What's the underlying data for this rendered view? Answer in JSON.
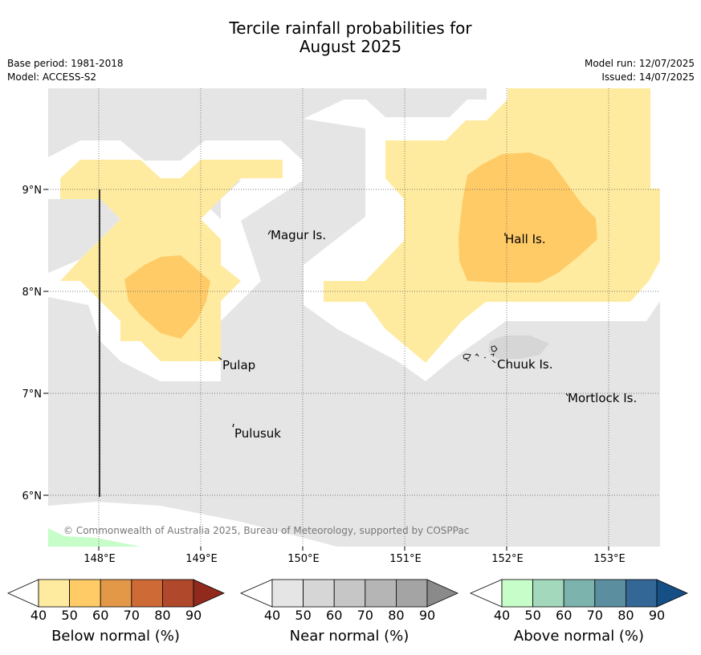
{
  "title": {
    "line1": "Tercile rainfall probabilities for",
    "line2": "August 2025"
  },
  "meta": {
    "base_period": "Base period: 1981-2018",
    "model": "Model: ACCESS-S2",
    "model_run": "Model run: 12/07/2025",
    "issued": "Issued: 14/07/2025"
  },
  "map": {
    "lat_labels": [
      "9°N",
      "8°N",
      "7°N",
      "6°N"
    ],
    "lon_labels": [
      "148°E",
      "149°E",
      "150°E",
      "151°E",
      "152°E",
      "153°E"
    ],
    "places": {
      "magur": "Magur Is.",
      "hall": "Hall Is.",
      "pulap": "Pulap",
      "chuuk": "Chuuk Is.",
      "mortlock": "Mortlock Is.",
      "pulusuk": "Pulusuk"
    },
    "copyright": "© Commonwealth of Australia 2025, Bureau of Meteorology, supported by COSPPac",
    "colors": {
      "near_normal_fill": "#e5e5e5",
      "near_normal_mid": "#d6d6d6",
      "below_50": "#feeba0",
      "below_60": "#ffcb67",
      "above_50": "#c7fdc9"
    }
  },
  "legends": {
    "ticks": [
      "40",
      "50",
      "60",
      "70",
      "80",
      "90"
    ],
    "below": {
      "label": "Below normal (%)",
      "colors": [
        "#ffffff",
        "#feeba0",
        "#ffcb67",
        "#e39847",
        "#cd6a36",
        "#b0492b",
        "#8f2a1c"
      ]
    },
    "near": {
      "label": "Near normal (%)",
      "colors": [
        "#ffffff",
        "#e5e5e5",
        "#d6d6d6",
        "#c6c6c6",
        "#b5b5b5",
        "#a4a4a4",
        "#8a8a8a"
      ]
    },
    "above": {
      "label": "Above normal (%)",
      "colors": [
        "#ffffff",
        "#c7fdc9",
        "#a3d8bd",
        "#7db3ad",
        "#5b8fa0",
        "#336796",
        "#154f86"
      ]
    }
  }
}
